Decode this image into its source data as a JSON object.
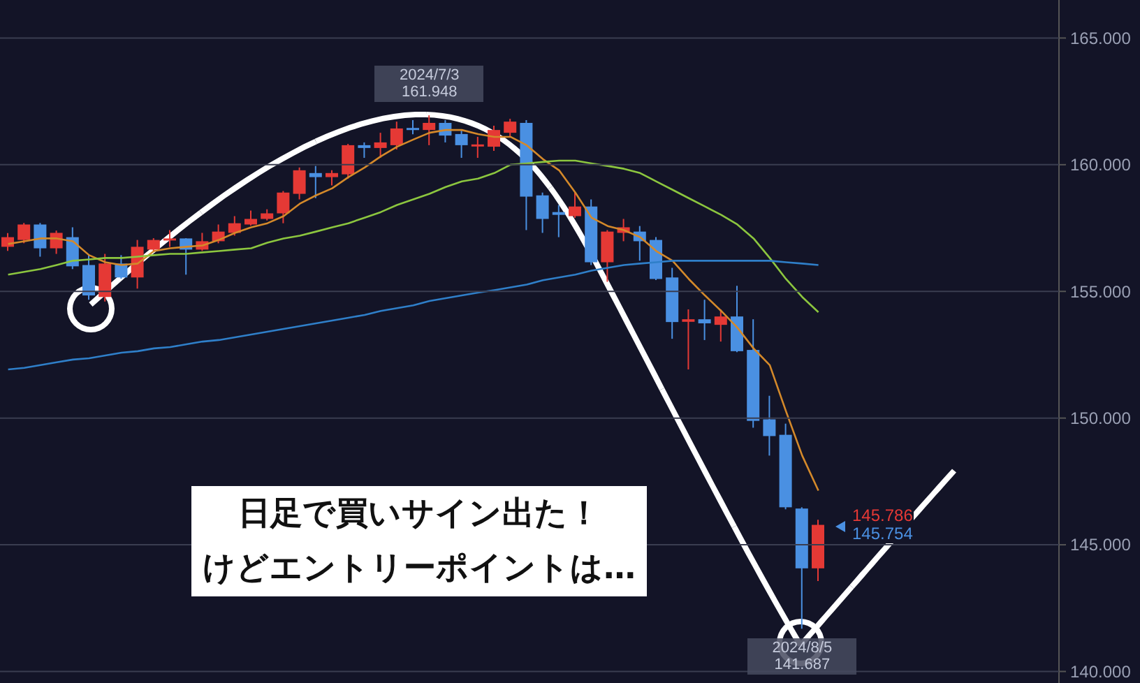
{
  "chart_data": {
    "type": "candlestick",
    "categories": [
      null,
      null,
      null,
      null,
      null,
      null,
      null,
      null,
      null,
      null,
      null,
      null,
      null,
      null,
      null,
      null,
      null,
      null,
      null,
      null,
      null,
      null,
      null,
      null,
      null,
      null,
      null,
      null,
      null,
      null,
      null,
      null,
      null,
      null,
      null,
      null,
      null,
      null,
      null,
      null,
      null,
      null,
      null,
      null,
      null,
      null,
      null,
      null,
      null,
      null,
      null
    ],
    "ohlc": [
      [
        156.76,
        157.3,
        156.6,
        157.14
      ],
      [
        157.03,
        157.7,
        156.9,
        157.64
      ],
      [
        157.64,
        157.7,
        156.37,
        156.7
      ],
      [
        156.7,
        157.4,
        156.48,
        157.31
      ],
      [
        157.14,
        157.53,
        155.88,
        155.99
      ],
      [
        156.04,
        156.43,
        154.67,
        154.84
      ],
      [
        154.78,
        156.48,
        154.6,
        156.1
      ],
      [
        156.1,
        156.43,
        155.5,
        155.55
      ],
      [
        155.55,
        157.03,
        155.11,
        156.76
      ],
      [
        156.65,
        157.1,
        156.6,
        157.03
      ],
      [
        157.03,
        157.42,
        156.76,
        157.09
      ],
      [
        157.09,
        157.1,
        155.66,
        156.65
      ],
      [
        156.65,
        157.31,
        156.6,
        156.98
      ],
      [
        156.98,
        157.64,
        156.9,
        157.36
      ],
      [
        157.31,
        157.97,
        157.2,
        157.69
      ],
      [
        157.64,
        158.19,
        157.6,
        157.86
      ],
      [
        157.86,
        158.24,
        157.8,
        158.08
      ],
      [
        158.08,
        158.96,
        157.69,
        158.9
      ],
      [
        158.85,
        159.89,
        158.63,
        159.78
      ],
      [
        159.67,
        159.95,
        158.68,
        159.51
      ],
      [
        159.51,
        159.78,
        159.18,
        159.67
      ],
      [
        159.62,
        160.82,
        159.45,
        160.77
      ],
      [
        160.77,
        160.88,
        160.27,
        160.66
      ],
      [
        160.66,
        161.26,
        160.27,
        160.88
      ],
      [
        160.77,
        161.7,
        160.6,
        161.43
      ],
      [
        161.45,
        161.76,
        161.2,
        161.4
      ],
      [
        161.37,
        161.948,
        160.77,
        161.65
      ],
      [
        161.65,
        161.76,
        160.88,
        161.15
      ],
      [
        161.21,
        161.37,
        160.27,
        160.77
      ],
      [
        160.74,
        161.1,
        160.27,
        160.8
      ],
      [
        160.71,
        161.54,
        160.55,
        161.37
      ],
      [
        161.26,
        161.81,
        161.1,
        161.7
      ],
      [
        161.65,
        161.76,
        157.42,
        158.74
      ],
      [
        158.79,
        158.9,
        157.31,
        157.86
      ],
      [
        158.13,
        158.41,
        157.14,
        158.02
      ],
      [
        157.97,
        158.9,
        157.9,
        158.35
      ],
      [
        158.35,
        158.63,
        156.04,
        156.15
      ],
      [
        156.15,
        157.42,
        155.38,
        157.36
      ],
      [
        157.31,
        157.86,
        156.98,
        157.53
      ],
      [
        157.36,
        157.58,
        156.21,
        156.98
      ],
      [
        157.03,
        157.14,
        155.45,
        155.49
      ],
      [
        155.55,
        155.93,
        153.13,
        153.79
      ],
      [
        153.8,
        154.29,
        151.92,
        153.9
      ],
      [
        153.9,
        154.67,
        153.08,
        153.74
      ],
      [
        153.68,
        154.29,
        153.02,
        154.01
      ],
      [
        154.01,
        155.22,
        152.6,
        152.64
      ],
      [
        152.69,
        153.9,
        149.62,
        149.89
      ],
      [
        149.95,
        150.88,
        148.52,
        149.29
      ],
      [
        149.34,
        149.78,
        146.4,
        146.48
      ],
      [
        146.43,
        146.48,
        141.687,
        144.07
      ],
      [
        144.07,
        145.99,
        143.57,
        145.786
      ]
    ],
    "colors": [
      "#e53935",
      "#e53935",
      "#4a90e2",
      "#e53935",
      "#4a90e2",
      "#4a90e2",
      "#e53935",
      "#4a90e2",
      "#e53935",
      "#e53935",
      "#e53935",
      "#4a90e2",
      "#e53935",
      "#e53935",
      "#e53935",
      "#e53935",
      "#e53935",
      "#e53935",
      "#e53935",
      "#4a90e2",
      "#e53935",
      "#e53935",
      "#4a90e2",
      "#e53935",
      "#e53935",
      "#4a90e2",
      "#e53935",
      "#4a90e2",
      "#4a90e2",
      "#e53935",
      "#e53935",
      "#e53935",
      "#4a90e2",
      "#4a90e2",
      "#4a90e2",
      "#e53935",
      "#4a90e2",
      "#e53935",
      "#e53935",
      "#4a90e2",
      "#4a90e2",
      "#4a90e2",
      "#e53935",
      "#4a90e2",
      "#e53935",
      "#4a90e2",
      "#4a90e2",
      "#4a90e2",
      "#4a90e2",
      "#4a90e2",
      "#e53935"
    ],
    "series": [
      {
        "type": "line",
        "color": "#d4892a",
        "values": [
          156.87,
          156.98,
          157.09,
          157.09,
          156.98,
          156.43,
          156.15,
          156.04,
          156.1,
          156.59,
          156.7,
          156.76,
          156.81,
          157.03,
          157.31,
          157.53,
          157.69,
          157.97,
          158.46,
          158.79,
          159.07,
          159.51,
          159.89,
          160.33,
          160.71,
          160.99,
          161.26,
          161.37,
          161.37,
          161.21,
          161.1,
          161.1,
          160.77,
          160.22,
          159.78,
          158.9,
          157.91,
          157.58,
          157.42,
          157.14,
          156.59,
          156.21,
          155.49,
          154.84,
          154.23,
          153.57,
          152.75,
          152.09,
          150.27,
          148.52,
          147.14
        ]
      },
      {
        "type": "line",
        "color": "#8cc63f",
        "values": [
          155.66,
          155.77,
          155.88,
          156.04,
          156.21,
          156.26,
          156.32,
          156.32,
          156.37,
          156.43,
          156.48,
          156.48,
          156.54,
          156.59,
          156.65,
          156.7,
          156.92,
          157.09,
          157.2,
          157.36,
          157.53,
          157.69,
          157.91,
          158.13,
          158.41,
          158.63,
          158.85,
          159.12,
          159.34,
          159.45,
          159.67,
          160.0,
          160.05,
          160.11,
          160.16,
          160.16,
          160.05,
          159.95,
          159.84,
          159.67,
          159.34,
          159.01,
          158.68,
          158.35,
          158.02,
          157.64,
          157.09,
          156.32,
          155.49,
          154.78,
          154.18
        ]
      },
      {
        "type": "line",
        "color": "#2f7fc9",
        "values": [
          151.92,
          151.98,
          152.09,
          152.2,
          152.31,
          152.36,
          152.47,
          152.58,
          152.64,
          152.75,
          152.8,
          152.91,
          153.02,
          153.08,
          153.19,
          153.3,
          153.41,
          153.52,
          153.63,
          153.74,
          153.85,
          153.96,
          154.07,
          154.23,
          154.34,
          154.45,
          154.62,
          154.73,
          154.84,
          154.95,
          155.05,
          155.16,
          155.27,
          155.44,
          155.55,
          155.66,
          155.82,
          155.93,
          156.04,
          156.1,
          156.15,
          156.21,
          156.21,
          156.21,
          156.21,
          156.21,
          156.21,
          156.21,
          156.15,
          156.1,
          156.04
        ]
      }
    ],
    "ylim": [
      139.6,
      166.5
    ],
    "yticks": [
      {
        "value": 140,
        "label": "140.000"
      },
      {
        "value": 145,
        "label": "145.000"
      },
      {
        "value": 150,
        "label": "150.000"
      },
      {
        "value": 155,
        "label": "155.000"
      },
      {
        "value": 160,
        "label": "160.000"
      },
      {
        "value": 165,
        "label": "165.000"
      }
    ],
    "grid": "y",
    "annotations": [
      "2024/7/3 161.948",
      "2024/8/5 141.687",
      "145.786",
      "145.754",
      "日足で買いサイン出た！",
      "けどエントリーポイントは…"
    ]
  }
}
